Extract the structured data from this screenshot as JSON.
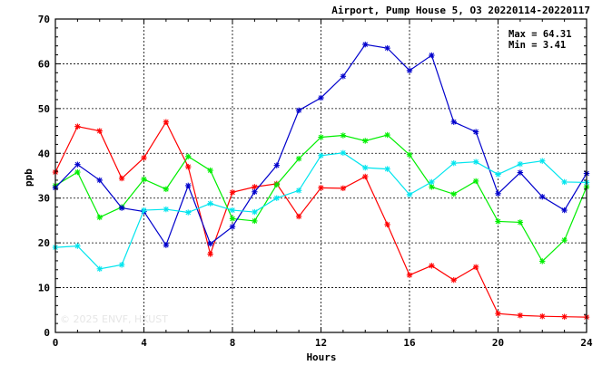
{
  "header": {
    "title": "Airport, Pump House 5, O3 20220114-20220117"
  },
  "stats": {
    "max_text": "Max = 64.31",
    "min_text": "Min =  3.41"
  },
  "watermark": "© 2025  ENVF, HKUST",
  "chart_data": {
    "type": "line",
    "title": "Airport, Pump House 5, O3 20220114-20220117",
    "xlabel": "Hours",
    "ylabel": "ppb",
    "xlim": [
      0,
      24
    ],
    "ylim": [
      0,
      70
    ],
    "xticks": [
      0,
      4,
      8,
      12,
      16,
      20,
      24
    ],
    "yticks": [
      0,
      10,
      20,
      30,
      40,
      50,
      60,
      70
    ],
    "grid": true,
    "x": [
      0,
      1,
      2,
      3,
      4,
      5,
      6,
      7,
      8,
      9,
      10,
      11,
      12,
      13,
      14,
      15,
      16,
      17,
      18,
      19,
      20,
      21,
      22,
      23,
      24
    ],
    "series": [
      {
        "color": "#ff0000",
        "values": [
          35.8,
          46.0,
          45.0,
          34.4,
          39.0,
          47.0,
          37.0,
          17.5,
          31.3,
          32.5,
          33.2,
          25.9,
          32.3,
          32.2,
          34.8,
          24.1,
          12.8,
          14.9,
          11.7,
          14.6,
          4.2,
          3.8,
          3.6,
          3.5,
          3.41
        ]
      },
      {
        "color": "#00ee00",
        "values": [
          32.8,
          35.8,
          25.7,
          28.0,
          34.2,
          32.0,
          39.3,
          36.2,
          25.4,
          24.9,
          33.0,
          38.8,
          43.6,
          44.0,
          42.8,
          44.1,
          39.7,
          32.5,
          30.9,
          33.8,
          24.8,
          24.6,
          15.9,
          20.6,
          32.5
        ]
      },
      {
        "color": "#0000cc",
        "values": [
          32.3,
          37.5,
          34.0,
          27.8,
          27.0,
          19.5,
          32.8,
          19.8,
          23.6,
          31.4,
          37.3,
          49.6,
          52.4,
          57.2,
          64.31,
          63.5,
          58.5,
          61.9,
          47.0,
          44.8,
          31.0,
          35.7,
          30.3,
          27.3,
          35.5
        ]
      },
      {
        "color": "#00e5ee",
        "values": [
          19.0,
          19.3,
          14.2,
          15.1,
          27.3,
          27.5,
          26.8,
          28.8,
          27.3,
          26.9,
          30.0,
          31.7,
          39.5,
          40.1,
          36.8,
          36.5,
          30.8,
          33.6,
          37.8,
          38.1,
          35.3,
          37.6,
          38.3,
          33.6,
          33.5
        ]
      }
    ]
  }
}
